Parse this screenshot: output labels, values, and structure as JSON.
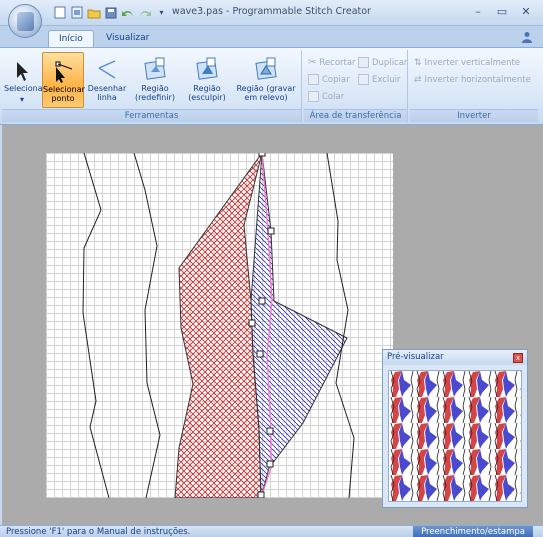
{
  "window": {
    "title": "wave3.pas - Programmable Stitch Creator",
    "minimize": "–",
    "restore": "▭",
    "close": "✕"
  },
  "tabs": [
    {
      "label": "Início",
      "active": true
    },
    {
      "label": "Visualizar",
      "active": false
    }
  ],
  "ribbon": {
    "tools": {
      "label": "Ferramentas",
      "select": "Selecionar",
      "select_arrow": "▾",
      "select_point": "Selecionar ponto",
      "draw_line": "Desenhar linha",
      "region_redefine": "Região (redefinir)",
      "region_sculpt": "Região (esculpir)",
      "region_emboss": "Região (gravar em relevo)"
    },
    "clipboard": {
      "label": "Área de transferência",
      "cut": "Recortar",
      "copy": "Copiar",
      "paste": "Colar",
      "duplicate": "Duplicar",
      "delete": "Excluir"
    },
    "invert": {
      "label": "Inverter",
      "vertical": "Inverter verticalmente",
      "horizontal": "Inverter horizontalmente"
    }
  },
  "preview": {
    "title": "Pré-visualizar",
    "close": "x"
  },
  "status": {
    "left": "Pressione 'F1' para o Manual de instruções.",
    "right": "Preenchimento/estampa"
  },
  "colors": {
    "accent": "#15428b",
    "selected_button": "#ffb347",
    "fill_red": "#cc2a2a",
    "fill_blue": "#2b2bb8"
  }
}
